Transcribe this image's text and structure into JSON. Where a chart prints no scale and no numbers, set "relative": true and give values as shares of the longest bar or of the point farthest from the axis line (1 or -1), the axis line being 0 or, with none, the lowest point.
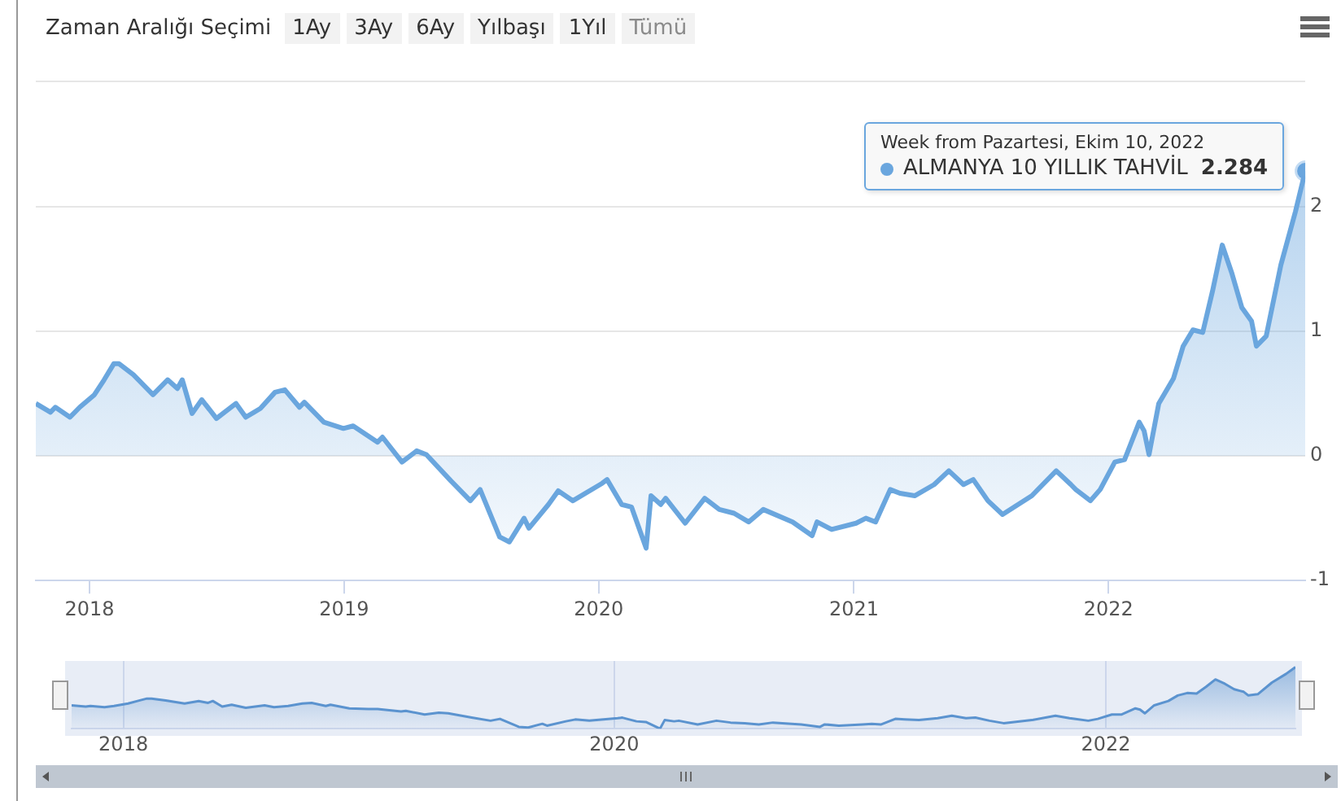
{
  "chart_data": [
    {
      "type": "area",
      "grid": "y",
      "marker": "none",
      "annotations": [
        "Zaman Aralığı Seçimi",
        "1Ay",
        "3Ay",
        "6Ay",
        "Yılbaşı",
        "1Yıl",
        "Tümü",
        "Week from Pazartesi, Ekim 10, 2022"
      ],
      "xlim": [
        "2017-10-16",
        "2022-10-10"
      ],
      "xticks": [
        "2018",
        "2019",
        "2020",
        "2021",
        "2022"
      ],
      "ylim": [
        -1,
        3
      ],
      "yticks": [
        -1,
        0,
        1,
        2,
        {
          "value": 3,
          "label": null
        }
      ],
      "x": [
        "2017-10-16",
        "2017-11-06",
        "2017-11-13",
        "2017-12-04",
        "2017-12-18",
        "2018-01-08",
        "2018-01-22",
        "2018-02-05",
        "2018-02-12",
        "2018-03-05",
        "2018-04-02",
        "2018-04-23",
        "2018-05-07",
        "2018-05-14",
        "2018-05-28",
        "2018-06-11",
        "2018-07-02",
        "2018-07-30",
        "2018-08-13",
        "2018-09-03",
        "2018-09-24",
        "2018-10-08",
        "2018-10-29",
        "2018-11-05",
        "2018-12-03",
        "2018-12-31",
        "2019-01-14",
        "2019-02-18",
        "2019-02-25",
        "2019-03-25",
        "2019-04-15",
        "2019-04-29",
        "2019-06-03",
        "2019-07-01",
        "2019-07-15",
        "2019-08-12",
        "2019-08-26",
        "2019-09-16",
        "2019-09-23",
        "2019-10-21",
        "2019-11-04",
        "2019-11-25",
        "2020-01-06",
        "2020-01-13",
        "2020-02-03",
        "2020-02-17",
        "2020-03-09",
        "2020-03-16",
        "2020-03-30",
        "2020-04-06",
        "2020-05-04",
        "2020-06-01",
        "2020-06-22",
        "2020-07-13",
        "2020-08-03",
        "2020-08-24",
        "2020-10-05",
        "2020-11-02",
        "2020-11-09",
        "2020-11-30",
        "2021-01-04",
        "2021-01-18",
        "2021-02-01",
        "2021-02-22",
        "2021-03-08",
        "2021-03-29",
        "2021-04-26",
        "2021-05-17",
        "2021-06-07",
        "2021-06-21",
        "2021-07-12",
        "2021-08-02",
        "2021-09-13",
        "2021-10-18",
        "2021-11-08",
        "2021-11-15",
        "2021-12-06",
        "2021-12-20",
        "2022-01-10",
        "2022-01-24",
        "2022-02-14",
        "2022-02-21",
        "2022-02-28",
        "2022-03-14",
        "2022-04-04",
        "2022-04-18",
        "2022-05-02",
        "2022-05-16",
        "2022-05-30",
        "2022-06-13",
        "2022-06-27",
        "2022-07-11",
        "2022-07-25",
        "2022-08-01",
        "2022-08-15",
        "2022-09-05",
        "2022-09-26",
        "2022-10-10"
      ],
      "series": [
        {
          "name": "ALMANYA 10 YILLIK TAHVİL",
          "color": "#6aa6de",
          "values": [
            0.42,
            0.35,
            0.39,
            0.31,
            0.39,
            0.49,
            0.61,
            0.74,
            0.74,
            0.65,
            0.49,
            0.61,
            0.54,
            0.61,
            0.34,
            0.45,
            0.3,
            0.42,
            0.31,
            0.38,
            0.51,
            0.53,
            0.39,
            0.43,
            0.27,
            0.22,
            0.24,
            0.11,
            0.15,
            -0.05,
            0.04,
            0.01,
            -0.2,
            -0.36,
            -0.27,
            -0.65,
            -0.69,
            -0.5,
            -0.58,
            -0.39,
            -0.28,
            -0.36,
            -0.22,
            -0.19,
            -0.39,
            -0.41,
            -0.74,
            -0.32,
            -0.39,
            -0.34,
            -0.54,
            -0.34,
            -0.43,
            -0.46,
            -0.53,
            -0.43,
            -0.53,
            -0.64,
            -0.53,
            -0.59,
            -0.54,
            -0.5,
            -0.53,
            -0.27,
            -0.3,
            -0.32,
            -0.23,
            -0.12,
            -0.23,
            -0.19,
            -0.36,
            -0.47,
            -0.32,
            -0.12,
            -0.23,
            -0.27,
            -0.36,
            -0.27,
            -0.05,
            -0.03,
            0.27,
            0.2,
            0.01,
            0.42,
            0.62,
            0.88,
            1.01,
            0.99,
            1.32,
            1.69,
            1.46,
            1.19,
            1.08,
            0.88,
            0.96,
            1.53,
            1.96,
            2.284
          ],
          "value_labels": [
            null,
            null,
            null,
            null,
            null,
            null,
            null,
            null,
            null,
            null,
            null,
            null,
            null,
            null,
            null,
            null,
            null,
            null,
            null,
            null,
            null,
            null,
            null,
            null,
            null,
            null,
            null,
            null,
            null,
            null,
            null,
            null,
            null,
            null,
            null,
            null,
            null,
            null,
            null,
            null,
            null,
            null,
            null,
            null,
            null,
            null,
            null,
            null,
            null,
            null,
            null,
            null,
            null,
            null,
            null,
            null,
            null,
            null,
            null,
            null,
            null,
            null,
            null,
            null,
            null,
            null,
            null,
            null,
            null,
            null,
            null,
            null,
            null,
            null,
            null,
            null,
            null,
            null,
            null,
            null,
            null,
            null,
            null,
            null,
            null,
            null,
            null,
            null,
            null,
            null,
            null,
            null,
            null,
            null,
            null,
            null,
            null,
            "2.284"
          ]
        }
      ]
    },
    {
      "type": "area",
      "grid": "x",
      "marker": "none",
      "tick_labels": "x",
      "relative": true,
      "xlim": [
        "2017-10-16",
        "2022-10-10"
      ],
      "xticks": [
        "2018",
        "2020",
        "2022"
      ],
      "x": [
        "2017-10-16",
        "2017-11-06",
        "2017-11-13",
        "2017-12-04",
        "2017-12-18",
        "2018-01-08",
        "2018-01-22",
        "2018-02-05",
        "2018-02-12",
        "2018-03-05",
        "2018-04-02",
        "2018-04-23",
        "2018-05-07",
        "2018-05-14",
        "2018-05-28",
        "2018-06-11",
        "2018-07-02",
        "2018-07-30",
        "2018-08-13",
        "2018-09-03",
        "2018-09-24",
        "2018-10-08",
        "2018-10-29",
        "2018-11-05",
        "2018-12-03",
        "2018-12-31",
        "2019-01-14",
        "2019-02-18",
        "2019-02-25",
        "2019-03-25",
        "2019-04-15",
        "2019-04-29",
        "2019-06-03",
        "2019-07-01",
        "2019-07-15",
        "2019-08-12",
        "2019-08-26",
        "2019-09-16",
        "2019-09-23",
        "2019-10-21",
        "2019-11-04",
        "2019-11-25",
        "2020-01-06",
        "2020-01-13",
        "2020-02-03",
        "2020-02-17",
        "2020-03-09",
        "2020-03-16",
        "2020-03-30",
        "2020-04-06",
        "2020-05-04",
        "2020-06-01",
        "2020-06-22",
        "2020-07-13",
        "2020-08-03",
        "2020-08-24",
        "2020-10-05",
        "2020-11-02",
        "2020-11-09",
        "2020-11-30",
        "2021-01-04",
        "2021-01-18",
        "2021-02-01",
        "2021-02-22",
        "2021-03-08",
        "2021-03-29",
        "2021-04-26",
        "2021-05-17",
        "2021-06-07",
        "2021-06-21",
        "2021-07-12",
        "2021-08-02",
        "2021-09-13",
        "2021-10-18",
        "2021-11-08",
        "2021-11-15",
        "2021-12-06",
        "2021-12-20",
        "2022-01-10",
        "2022-01-24",
        "2022-02-14",
        "2022-02-21",
        "2022-02-28",
        "2022-03-14",
        "2022-04-04",
        "2022-04-18",
        "2022-05-02",
        "2022-05-16",
        "2022-05-30",
        "2022-06-13",
        "2022-06-27",
        "2022-07-11",
        "2022-07-25",
        "2022-08-01",
        "2022-08-15",
        "2022-09-05",
        "2022-09-26",
        "2022-10-10"
      ],
      "series": [
        {
          "color": "#5b93cf",
          "values": [
            0.38,
            0.36,
            0.37,
            0.35,
            0.37,
            0.41,
            0.45,
            0.49,
            0.49,
            0.46,
            0.41,
            0.45,
            0.42,
            0.45,
            0.36,
            0.39,
            0.34,
            0.38,
            0.35,
            0.37,
            0.41,
            0.42,
            0.37,
            0.39,
            0.33,
            0.32,
            0.32,
            0.28,
            0.29,
            0.23,
            0.26,
            0.25,
            0.18,
            0.13,
            0.16,
            0.03,
            0.02,
            0.08,
            0.05,
            0.12,
            0.15,
            0.13,
            0.17,
            0.18,
            0.12,
            0.11,
            0,
            0.14,
            0.12,
            0.13,
            0.07,
            0.13,
            0.1,
            0.09,
            0.07,
            0.1,
            0.07,
            0.03,
            0.07,
            0.05,
            0.07,
            0.08,
            0.07,
            0.16,
            0.15,
            0.14,
            0.17,
            0.21,
            0.17,
            0.18,
            0.13,
            0.09,
            0.14,
            0.21,
            0.17,
            0.16,
            0.13,
            0.16,
            0.23,
            0.23,
            0.33,
            0.31,
            0.25,
            0.38,
            0.45,
            0.54,
            0.58,
            0.57,
            0.68,
            0.8,
            0.73,
            0.64,
            0.6,
            0.54,
            0.56,
            0.75,
            0.89,
            1
          ]
        }
      ]
    }
  ]
}
